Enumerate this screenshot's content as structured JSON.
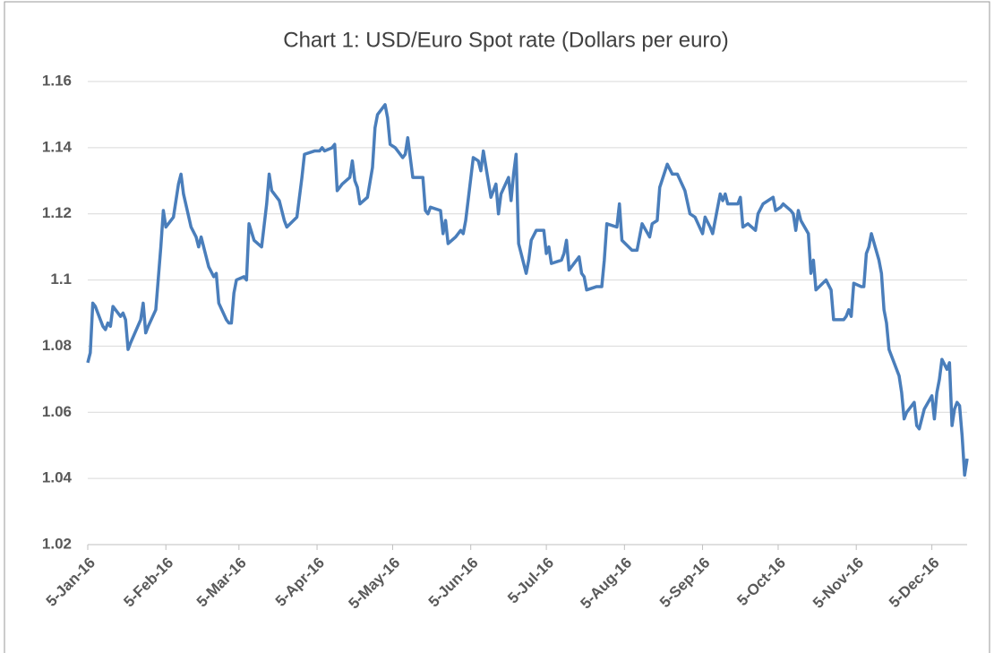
{
  "chart_data": {
    "type": "line",
    "title": "Chart 1: USD/Euro Spot rate (Dollars per euro)",
    "x": [
      "2016-01-05",
      "2016-01-06",
      "2016-01-07",
      "2016-01-08",
      "2016-01-11",
      "2016-01-12",
      "2016-01-13",
      "2016-01-14",
      "2016-01-15",
      "2016-01-18",
      "2016-01-19",
      "2016-01-20",
      "2016-01-21",
      "2016-01-22",
      "2016-01-26",
      "2016-01-27",
      "2016-01-28",
      "2016-01-29",
      "2016-02-01",
      "2016-02-03",
      "2016-02-04",
      "2016-02-05",
      "2016-02-08",
      "2016-02-10",
      "2016-02-11",
      "2016-02-12",
      "2016-02-15",
      "2016-02-17",
      "2016-02-18",
      "2016-02-19",
      "2016-02-22",
      "2016-02-24",
      "2016-02-25",
      "2016-02-26",
      "2016-02-29",
      "2016-03-01",
      "2016-03-02",
      "2016-03-03",
      "2016-03-04",
      "2016-03-07",
      "2016-03-08",
      "2016-03-09",
      "2016-03-11",
      "2016-03-14",
      "2016-03-16",
      "2016-03-17",
      "2016-03-18",
      "2016-03-21",
      "2016-03-23",
      "2016-03-24",
      "2016-03-28",
      "2016-03-30",
      "2016-03-31",
      "2016-04-04",
      "2016-04-06",
      "2016-04-07",
      "2016-04-08",
      "2016-04-11",
      "2016-04-12",
      "2016-04-13",
      "2016-04-15",
      "2016-04-18",
      "2016-04-19",
      "2016-04-20",
      "2016-04-21",
      "2016-04-22",
      "2016-04-25",
      "2016-04-27",
      "2016-04-28",
      "2016-04-29",
      "2016-05-02",
      "2016-05-03",
      "2016-05-04",
      "2016-05-06",
      "2016-05-09",
      "2016-05-10",
      "2016-05-11",
      "2016-05-12",
      "2016-05-13",
      "2016-05-17",
      "2016-05-18",
      "2016-05-19",
      "2016-05-20",
      "2016-05-24",
      "2016-05-25",
      "2016-05-26",
      "2016-05-27",
      "2016-05-30",
      "2016-06-01",
      "2016-06-02",
      "2016-06-03",
      "2016-06-06",
      "2016-06-08",
      "2016-06-09",
      "2016-06-10",
      "2016-06-13",
      "2016-06-14",
      "2016-06-15",
      "2016-06-16",
      "2016-06-17",
      "2016-06-20",
      "2016-06-21",
      "2016-06-22",
      "2016-06-23",
      "2016-06-24",
      "2016-06-27",
      "2016-06-28",
      "2016-06-29",
      "2016-07-01",
      "2016-07-04",
      "2016-07-05",
      "2016-07-06",
      "2016-07-07",
      "2016-07-11",
      "2016-07-12",
      "2016-07-13",
      "2016-07-14",
      "2016-07-18",
      "2016-07-19",
      "2016-07-20",
      "2016-07-21",
      "2016-07-25",
      "2016-07-27",
      "2016-07-28",
      "2016-07-29",
      "2016-08-02",
      "2016-08-03",
      "2016-08-04",
      "2016-08-08",
      "2016-08-10",
      "2016-08-12",
      "2016-08-15",
      "2016-08-16",
      "2016-08-18",
      "2016-08-19",
      "2016-08-22",
      "2016-08-24",
      "2016-08-26",
      "2016-08-29",
      "2016-08-31",
      "2016-09-02",
      "2016-09-05",
      "2016-09-06",
      "2016-09-08",
      "2016-09-09",
      "2016-09-12",
      "2016-09-13",
      "2016-09-14",
      "2016-09-15",
      "2016-09-19",
      "2016-09-20",
      "2016-09-21",
      "2016-09-23",
      "2016-09-26",
      "2016-09-27",
      "2016-09-29",
      "2016-10-03",
      "2016-10-04",
      "2016-10-06",
      "2016-10-07",
      "2016-10-10",
      "2016-10-11",
      "2016-10-12",
      "2016-10-13",
      "2016-10-14",
      "2016-10-17",
      "2016-10-18",
      "2016-10-19",
      "2016-10-20",
      "2016-10-24",
      "2016-10-26",
      "2016-10-27",
      "2016-10-31",
      "2016-11-01",
      "2016-11-02",
      "2016-11-03",
      "2016-11-04",
      "2016-11-07",
      "2016-11-08",
      "2016-11-09",
      "2016-11-10",
      "2016-11-11",
      "2016-11-14",
      "2016-11-15",
      "2016-11-16",
      "2016-11-17",
      "2016-11-18",
      "2016-11-21",
      "2016-11-22",
      "2016-11-23",
      "2016-11-24",
      "2016-11-25",
      "2016-11-28",
      "2016-11-29",
      "2016-11-30",
      "2016-12-01",
      "2016-12-02",
      "2016-12-05",
      "2016-12-06",
      "2016-12-07",
      "2016-12-08",
      "2016-12-09",
      "2016-12-11",
      "2016-12-12",
      "2016-12-13",
      "2016-12-14",
      "2016-12-15",
      "2016-12-16",
      "2016-12-17",
      "2016-12-18",
      "2016-12-19"
    ],
    "series": [
      {
        "name": "USD/Euro",
        "color": "#4a7ebb",
        "values": [
          1.075,
          1.078,
          1.093,
          1.092,
          1.086,
          1.085,
          1.087,
          1.086,
          1.092,
          1.089,
          1.09,
          1.088,
          1.079,
          1.081,
          1.088,
          1.093,
          1.084,
          1.086,
          1.091,
          1.11,
          1.121,
          1.116,
          1.119,
          1.129,
          1.132,
          1.126,
          1.116,
          1.113,
          1.11,
          1.113,
          1.104,
          1.101,
          1.102,
          1.093,
          1.088,
          1.087,
          1.087,
          1.096,
          1.1,
          1.101,
          1.1,
          1.117,
          1.112,
          1.11,
          1.123,
          1.132,
          1.127,
          1.124,
          1.118,
          1.116,
          1.119,
          1.131,
          1.138,
          1.139,
          1.139,
          1.14,
          1.139,
          1.14,
          1.141,
          1.127,
          1.129,
          1.131,
          1.136,
          1.13,
          1.128,
          1.123,
          1.125,
          1.134,
          1.146,
          1.15,
          1.153,
          1.149,
          1.141,
          1.14,
          1.137,
          1.138,
          1.143,
          1.137,
          1.131,
          1.131,
          1.121,
          1.12,
          1.122,
          1.121,
          1.114,
          1.118,
          1.111,
          1.113,
          1.115,
          1.114,
          1.118,
          1.137,
          1.136,
          1.133,
          1.139,
          1.125,
          1.127,
          1.129,
          1.12,
          1.126,
          1.131,
          1.124,
          1.132,
          1.138,
          1.111,
          1.102,
          1.106,
          1.112,
          1.115,
          1.115,
          1.108,
          1.11,
          1.105,
          1.106,
          1.108,
          1.112,
          1.103,
          1.107,
          1.102,
          1.101,
          1.097,
          1.098,
          1.098,
          1.106,
          1.117,
          1.116,
          1.123,
          1.112,
          1.109,
          1.109,
          1.117,
          1.113,
          1.117,
          1.118,
          1.128,
          1.135,
          1.132,
          1.132,
          1.127,
          1.12,
          1.119,
          1.114,
          1.119,
          1.116,
          1.114,
          1.126,
          1.124,
          1.126,
          1.123,
          1.123,
          1.125,
          1.116,
          1.117,
          1.115,
          1.12,
          1.123,
          1.125,
          1.121,
          1.122,
          1.123,
          1.121,
          1.12,
          1.115,
          1.121,
          1.118,
          1.114,
          1.102,
          1.106,
          1.097,
          1.1,
          1.097,
          1.088,
          1.088,
          1.089,
          1.091,
          1.089,
          1.099,
          1.098,
          1.098,
          1.108,
          1.11,
          1.114,
          1.106,
          1.102,
          1.091,
          1.087,
          1.079,
          1.073,
          1.071,
          1.066,
          1.058,
          1.06,
          1.063,
          1.056,
          1.055,
          1.058,
          1.061,
          1.065,
          1.058,
          1.066,
          1.07,
          1.076,
          1.073,
          1.075,
          1.056,
          1.061,
          1.063,
          1.062,
          1.053,
          1.041,
          1.046
        ]
      }
    ],
    "xlim": [
      "2016-01-05",
      "2016-12-19"
    ],
    "xticks": [
      {
        "value": "2016-01-05",
        "label": "5-Jan-16"
      },
      {
        "value": "2016-02-05",
        "label": "5-Feb-16"
      },
      {
        "value": "2016-03-05",
        "label": "5-Mar-16"
      },
      {
        "value": "2016-04-05",
        "label": "5-Apr-16"
      },
      {
        "value": "2016-05-05",
        "label": "5-May-16"
      },
      {
        "value": "2016-06-05",
        "label": "5-Jun-16"
      },
      {
        "value": "2016-07-05",
        "label": "5-Jul-16"
      },
      {
        "value": "2016-08-05",
        "label": "5-Aug-16"
      },
      {
        "value": "2016-09-05",
        "label": "5-Sep-16"
      },
      {
        "value": "2016-10-05",
        "label": "5-Oct-16"
      },
      {
        "value": "2016-11-05",
        "label": "5-Nov-16"
      },
      {
        "value": "2016-12-05",
        "label": "5-Dec-16"
      }
    ],
    "ylim": [
      1.02,
      1.16
    ],
    "yticks": [
      1.02,
      1.04,
      1.06,
      1.08,
      1.1,
      1.12,
      1.14,
      1.16
    ],
    "grid": true
  }
}
